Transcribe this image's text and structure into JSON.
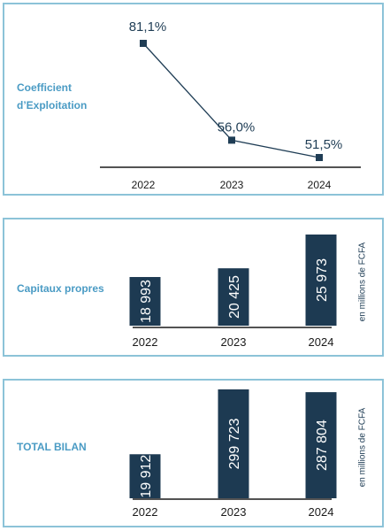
{
  "colors": {
    "border": "#8cc3d8",
    "label": "#4a9bc4",
    "dark": "#1f3d55",
    "bar": "#1d3a52"
  },
  "panels": [
    {
      "label_line1": "Coefficient",
      "label_line2": "d’Exploitation"
    },
    {
      "label": "Capitaux propres",
      "unit": "en millions de FCFA"
    },
    {
      "label": "TOTAL BILAN",
      "unit": "en millions de FCFA"
    }
  ],
  "chart_data": [
    {
      "type": "line",
      "categories": [
        "2022",
        "2023",
        "2024"
      ],
      "values": [
        81.1,
        56.0,
        51.5
      ],
      "value_labels": [
        "81,1%",
        "56,0%",
        "51,5%"
      ]
    },
    {
      "type": "bar",
      "categories": [
        "2022",
        "2023",
        "2024"
      ],
      "values": [
        18993,
        20425,
        25973
      ],
      "value_labels": [
        "18 993",
        "20 425",
        "25 973"
      ]
    },
    {
      "type": "bar",
      "categories": [
        "2022",
        "2023",
        "2024"
      ],
      "values": [
        19912,
        299723,
        287804
      ],
      "value_labels": [
        "19 912",
        "299 723",
        "287 804"
      ]
    }
  ]
}
